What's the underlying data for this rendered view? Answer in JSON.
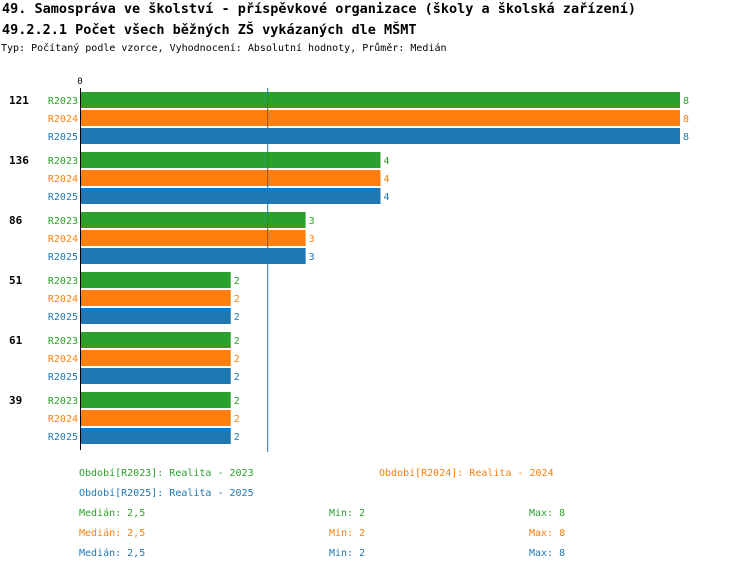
{
  "title": "49. Samospráva ve školství - příspěvkové organizace (školy a školská zařízení)",
  "subtitle_heading": "49.2.2.1 Počet všech běžných ZŠ vykázaných dle MŠMT",
  "type_line": "Typ: Počítaný podle vzorce, Vyhodnocení: Absolutní hodnoty, Průměr: Medián",
  "chart_data": {
    "type": "bar",
    "orientation": "horizontal",
    "x_axis_tick": "0",
    "xlim": [
      0,
      8
    ],
    "median_line": 2.5,
    "groups": [
      "121",
      "136",
      "86",
      "51",
      "61",
      "39"
    ],
    "series": [
      {
        "name": "R2023",
        "color": "#2ca02c",
        "values": [
          8,
          4,
          3,
          2,
          2,
          2
        ]
      },
      {
        "name": "R2024",
        "color": "#ff7f0e",
        "values": [
          8,
          4,
          3,
          2,
          2,
          2
        ]
      },
      {
        "name": "R2025",
        "color": "#1f77b4",
        "values": [
          8,
          4,
          3,
          2,
          2,
          2
        ]
      }
    ]
  },
  "legend": [
    {
      "label": "Období[R2023]: Realita - 2023",
      "color": "#2ca02c"
    },
    {
      "label": "Období[R2024]: Realita - 2024",
      "color": "#ff7f0e"
    },
    {
      "label": "Období[R2025]: Realita - 2025",
      "color": "#1f77b4"
    }
  ],
  "stats": [
    {
      "median": "Medián: 2,5",
      "min": "Min: 2",
      "max": "Max: 8",
      "color": "#2ca02c"
    },
    {
      "median": "Medián: 2,5",
      "min": "Min: 2",
      "max": "Max: 8",
      "color": "#ff7f0e"
    },
    {
      "median": "Medián: 2,5",
      "min": "Min: 2",
      "max": "Max: 8",
      "color": "#1f77b4"
    }
  ]
}
